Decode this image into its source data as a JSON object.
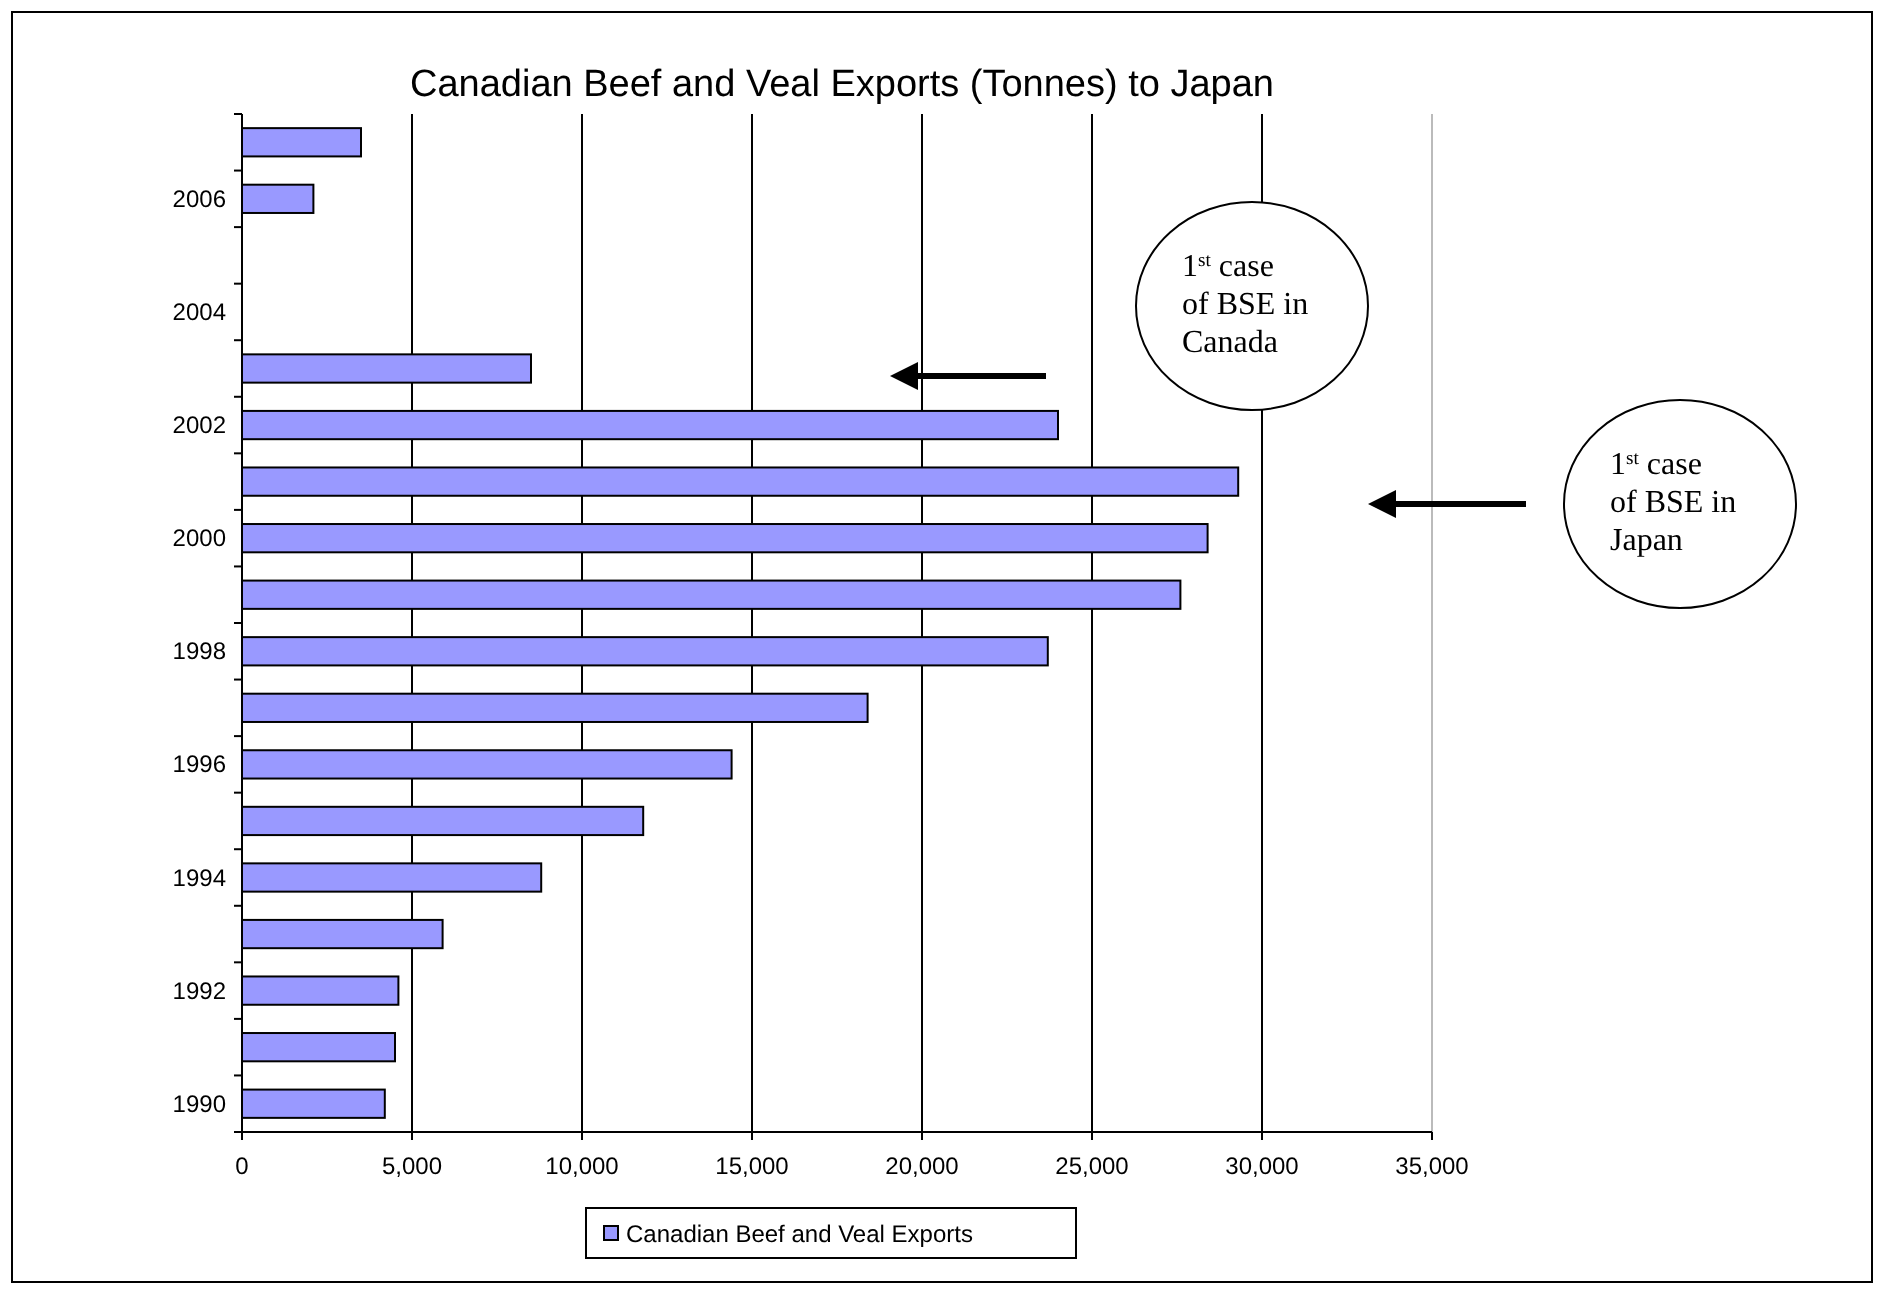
{
  "chart_data": {
    "type": "bar",
    "orientation": "horizontal",
    "title": "Canadian Beef and Veal Exports (Tonnes) to Japan",
    "categories": [
      null,
      "2006",
      null,
      "2004",
      null,
      "2002",
      null,
      "2000",
      null,
      "1998",
      null,
      "1996",
      null,
      "1994",
      null,
      "1992",
      null,
      "1990"
    ],
    "series": [
      {
        "name": "Canadian Beef and Veal Exports",
        "color": "#9999ff",
        "values": [
          3500,
          2100,
          null,
          null,
          8500,
          24000,
          29300,
          28400,
          27600,
          23700,
          18400,
          14400,
          11800,
          8800,
          5900,
          4600,
          4500,
          4200
        ]
      }
    ],
    "xlim": [
      0,
      35000
    ],
    "xticks": [
      0,
      {
        "value": 5000,
        "label": "5,000"
      },
      {
        "value": 10000,
        "label": "10,000"
      },
      {
        "value": 15000,
        "label": "15,000"
      },
      {
        "value": 20000,
        "label": "20,000"
      },
      {
        "value": 25000,
        "label": "25,000"
      },
      {
        "value": 30000,
        "label": "30,000"
      },
      {
        "value": 35000,
        "label": "35,000"
      }
    ],
    "grid": "x",
    "legend": "bottom",
    "annotations": [
      "1$^{st}$ case of BSE in Canada",
      "1$^{st}$ case of BSE in Japan"
    ]
  }
}
